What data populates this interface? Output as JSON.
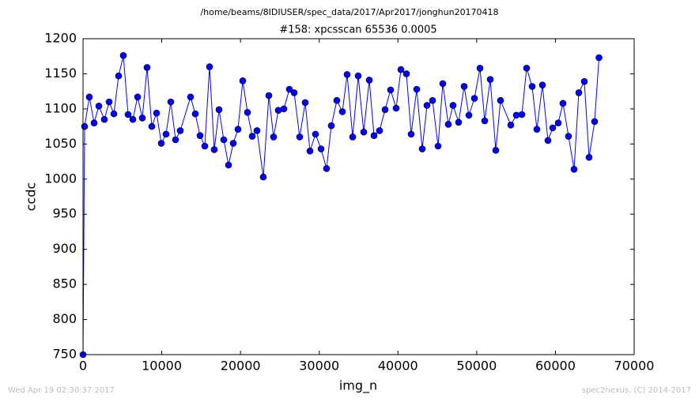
{
  "chart_data": {
    "type": "line",
    "suptitle": "/home/beams/8IDIUSER/spec_data/2017/Apr2017/jonghun20170418",
    "title": "#158: xpcsscan 65536 0.0005",
    "xlabel": "img_n",
    "ylabel": "ccdc",
    "footer_left": "Wed Apr 19 02:30:37 2017",
    "footer_right": "spec2nexus, (C) 2014-2017",
    "color": "#0000ff",
    "x": [
      0,
      201,
      803,
      1406,
      2008,
      2712,
      3314,
      3917,
      4519,
      5122,
      5724,
      6327,
      6930,
      7532,
      8135,
      8737,
      9340,
      9942,
      10545,
      11147,
      11750,
      12353,
      13658,
      14261,
      14864,
      15466,
      16069,
      16671,
      17274,
      17877,
      18479,
      19082,
      19684,
      20287,
      20889,
      21492,
      22095,
      22898,
      23601,
      24204,
      24806,
      25509,
      26212,
      26815,
      27518,
      28221,
      28823,
      29526,
      30229,
      30932,
      31535,
      32238,
      32941,
      33544,
      34247,
      34950,
      35653,
      36356,
      36958,
      37661,
      38364,
      39067,
      39770,
      40373,
      41076,
      41678,
      42381,
      43084,
      43687,
      44390,
      45093,
      45695,
      46398,
      47001,
      47704,
      48407,
      49009,
      49712,
      50415,
      51018,
      51721,
      52424,
      53026,
      54332,
      55035,
      55738,
      56340,
      57043,
      57646,
      58349,
      59052,
      59654,
      60357,
      60960,
      61663,
      62366,
      62968,
      63671,
      64274,
      64977,
      65536
    ],
    "values": [
      750,
      1075,
      1117,
      1080,
      1104,
      1085,
      1110,
      1093,
      1147,
      1176,
      1092,
      1085,
      1117,
      1087,
      1159,
      1075,
      1094,
      1051,
      1064,
      1110,
      1056,
      1069,
      1117,
      1093,
      1062,
      1047,
      1160,
      1042,
      1099,
      1056,
      1020,
      1051,
      1071,
      1140,
      1095,
      1061,
      1069,
      1003,
      1119,
      1060,
      1098,
      1100,
      1128,
      1123,
      1060,
      1109,
      1040,
      1064,
      1043,
      1015,
      1076,
      1112,
      1096,
      1149,
      1060,
      1147,
      1067,
      1141,
      1062,
      1069,
      1099,
      1127,
      1101,
      1156,
      1150,
      1064,
      1128,
      1043,
      1105,
      1112,
      1047,
      1136,
      1078,
      1105,
      1081,
      1132,
      1091,
      1115,
      1158,
      1083,
      1142,
      1041,
      1112,
      1077,
      1091,
      1092,
      1158,
      1132,
      1071,
      1134,
      1055,
      1073,
      1080,
      1108,
      1061,
      1014,
      1123,
      1139,
      1031,
      1082,
      1173
    ],
    "xlim": [
      0,
      70000
    ],
    "xticks": [
      0,
      10000,
      20000,
      30000,
      40000,
      50000,
      60000,
      70000
    ],
    "ylim": [
      750,
      1200
    ],
    "yticks": [
      750,
      800,
      850,
      900,
      950,
      1000,
      1050,
      1100,
      1150,
      1200
    ],
    "grid": false,
    "marker": "o"
  }
}
